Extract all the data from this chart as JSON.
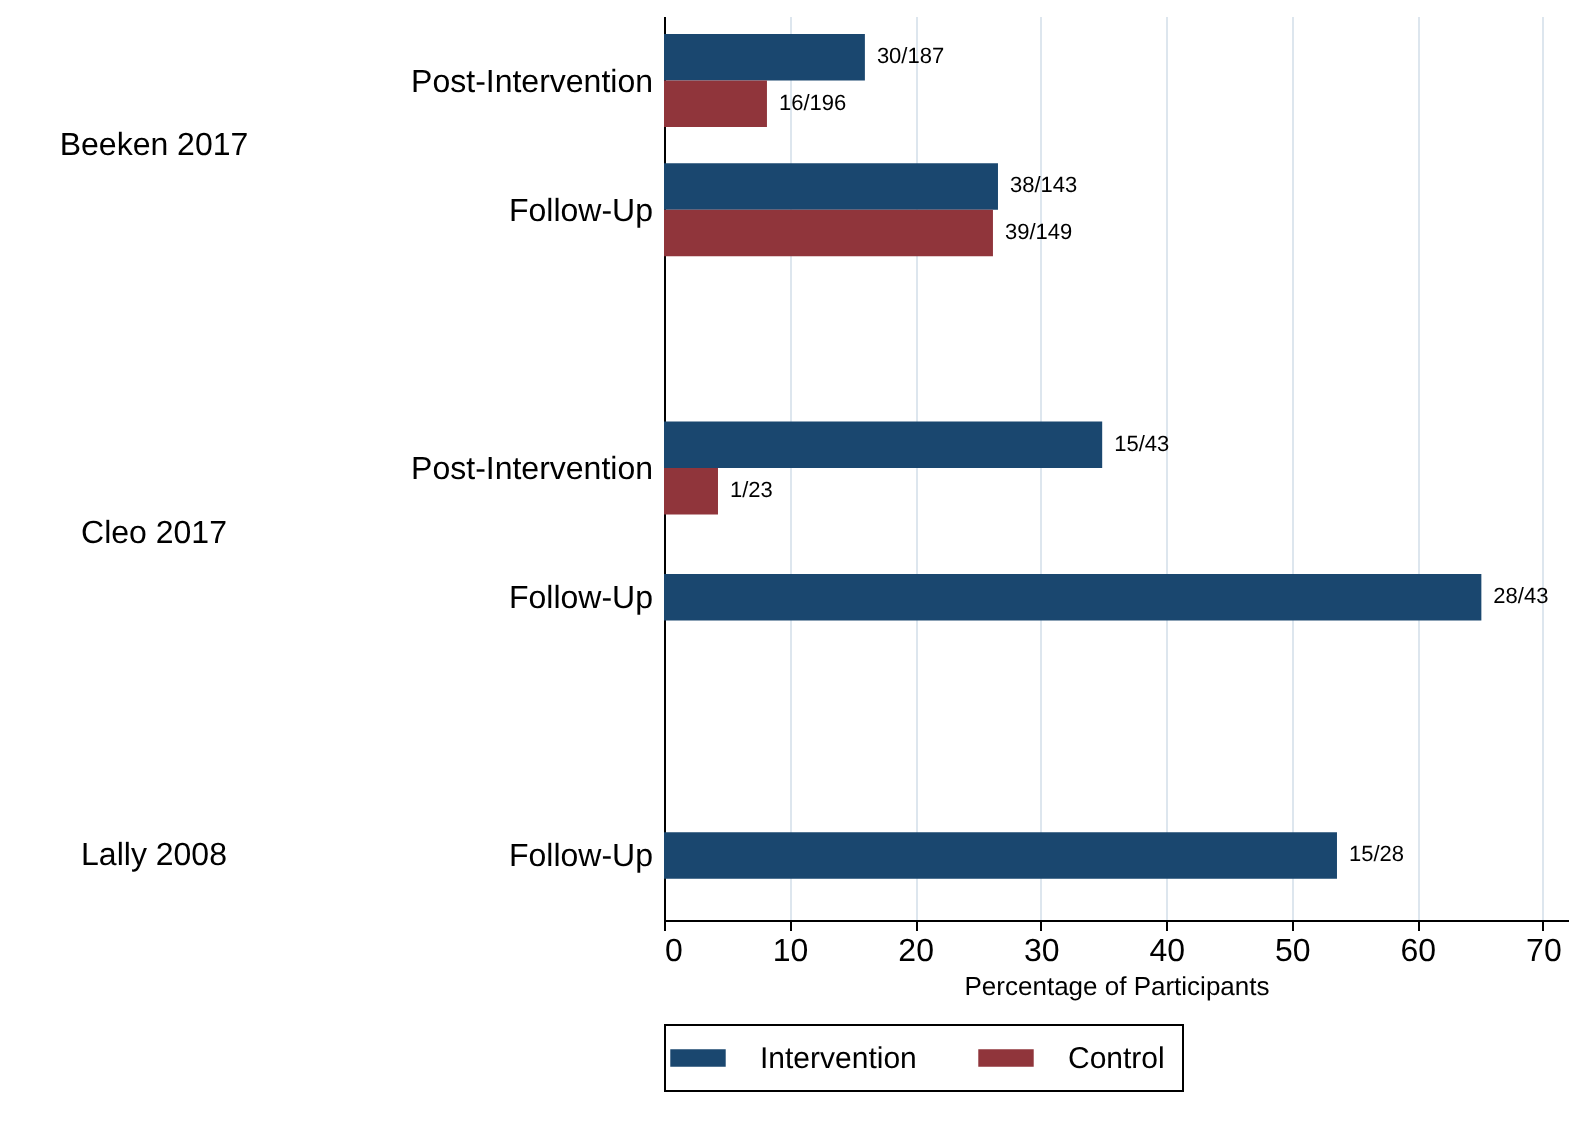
{
  "chart_data": {
    "type": "bar",
    "orientation": "horizontal",
    "xlabel": "Percentage of Participants",
    "categories": [
      "Post-Intervention",
      "Follow-Up",
      null,
      "Post-Intervention",
      "Follow-Up",
      null,
      "Follow-Up"
    ],
    "series": [
      {
        "name": "Intervention",
        "color": "#1a476f",
        "values": [
          16.0,
          26.6,
          null,
          34.9,
          65.1,
          null,
          53.6
        ],
        "value_labels": [
          "30/187",
          "38/143",
          null,
          "15/43",
          "28/43",
          null,
          "15/28"
        ]
      },
      {
        "name": "Control",
        "color": "#90353b",
        "values": [
          8.2,
          26.2,
          null,
          4.3,
          null,
          null,
          null
        ],
        "value_labels": [
          "16/196",
          "39/149",
          null,
          "1/23",
          null,
          null,
          null
        ]
      }
    ],
    "annotations": [
      "Beeken 2017",
      "Cleo 2017",
      "Lally 2008"
    ],
    "xlim": [
      0,
      72
    ],
    "xticks": [
      0,
      10,
      20,
      30,
      40,
      50,
      60,
      70
    ],
    "grid": "x",
    "legend": "bottom"
  }
}
